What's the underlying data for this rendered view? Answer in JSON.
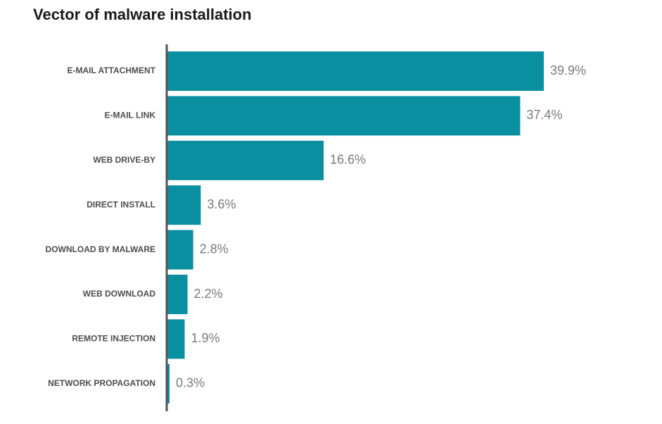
{
  "chart_data": {
    "type": "bar",
    "orientation": "horizontal",
    "title": "Vector of malware installation",
    "categories": [
      "E-MAIL ATTACHMENT",
      "E-MAIL LINK",
      "WEB DRIVE-BY",
      "DIRECT INSTALL",
      "DOWNLOAD BY MALWARE",
      "WEB DOWNLOAD",
      "REMOTE INJECTION",
      "NETWORK PROPAGATION"
    ],
    "values": [
      39.9,
      37.4,
      16.6,
      3.6,
      2.8,
      2.2,
      1.9,
      0.3
    ],
    "value_labels": [
      "39.9%",
      "37.4%",
      "16.6%",
      "3.6%",
      "2.8%",
      "2.2%",
      "1.9%",
      "0.3%"
    ],
    "xlabel": "",
    "ylabel": "",
    "xlim": [
      0,
      39.9
    ],
    "grid": false,
    "legend": "none",
    "colors": {
      "bar": "#0a8fa1",
      "axis": "#555555",
      "category_text": "#4d4d4d",
      "value_text": "#7a7a7a",
      "title_text": "#1a1a1a"
    }
  }
}
